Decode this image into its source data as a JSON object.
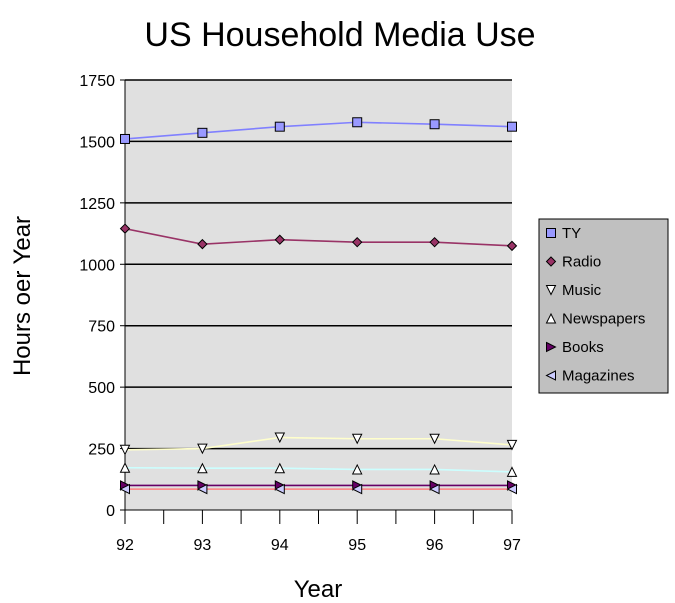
{
  "chart_data": {
    "type": "line",
    "title": "US Household Media Use",
    "xlabel": "Year",
    "ylabel": "Hours oer Year",
    "categories": [
      "92",
      "93",
      "94",
      "95",
      "96",
      "97"
    ],
    "y_ticks": [
      "0",
      "250",
      "500",
      "750",
      "1000",
      "1250",
      "1500",
      "1750"
    ],
    "ylim": [
      0,
      1750
    ],
    "grid": "horizontal",
    "legend_position": "right",
    "plot_background": "#e0e0e0",
    "series": [
      {
        "name": "TY",
        "values": [
          1510,
          1535,
          1560,
          1578,
          1570,
          1560
        ],
        "color": "#8080ff",
        "marker": "square",
        "marker_color": "#9999ff"
      },
      {
        "name": "Radio",
        "values": [
          1145,
          1082,
          1100,
          1090,
          1090,
          1075
        ],
        "color": "#993366",
        "marker": "diamond",
        "marker_color": "#993366"
      },
      {
        "name": "Music",
        "values": [
          245,
          250,
          295,
          290,
          290,
          265
        ],
        "color": "#ffffcc",
        "marker": "triangle-down",
        "marker_color": "#ffffff"
      },
      {
        "name": "Newspapers",
        "values": [
          172,
          170,
          170,
          165,
          165,
          155
        ],
        "color": "#ccffff",
        "marker": "triangle-up",
        "marker_color": "#ffffff"
      },
      {
        "name": "Books",
        "values": [
          100,
          100,
          100,
          100,
          100,
          100
        ],
        "color": "#660066",
        "marker": "triangle-right",
        "marker_color": "#660066"
      },
      {
        "name": "Magazines",
        "values": [
          85,
          85,
          85,
          85,
          85,
          85
        ],
        "color": "#ff8080",
        "marker": "triangle-left",
        "marker_color": "#ccccff"
      }
    ]
  }
}
